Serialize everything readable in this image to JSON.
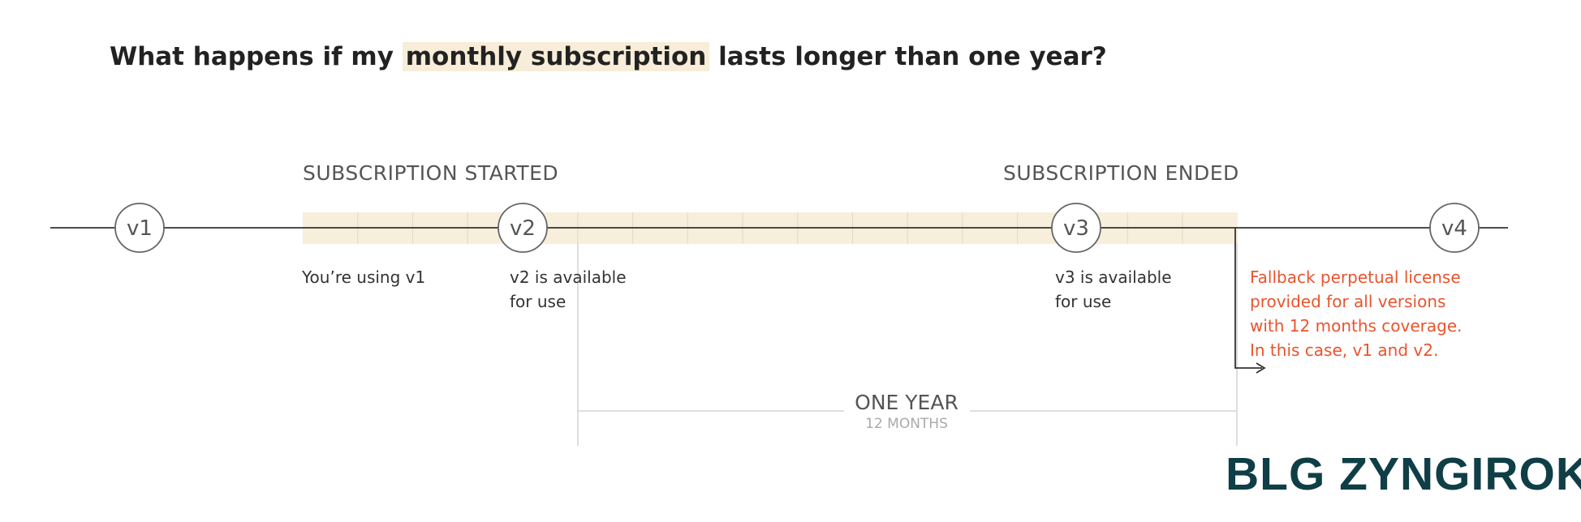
{
  "question": {
    "prefix": "What happens if my ",
    "highlight": "monthly subscription",
    "suffix": " lasts longer than one year?"
  },
  "timeline": {
    "subscription_started": "SUBSCRIPTION STARTED",
    "subscription_ended": "SUBSCRIPTION ENDED",
    "versions": [
      "v1",
      "v2",
      "v3",
      "v4"
    ],
    "notes": {
      "using_v1": "You’re using v1",
      "v2_line1": "v2 is available",
      "v2_line2": "for use",
      "v3_line1": "v3 is available",
      "v3_line2": "for use"
    },
    "fallback": {
      "line1": "Fallback perpetual license",
      "line2": "provided for all versions",
      "line3": "with 12 months coverage.",
      "line4": "In this case, v1 and v2."
    },
    "one_year": "ONE YEAR",
    "twelve_months": "12 MONTHS",
    "colors": {
      "band": "#f7efdc",
      "fallback_text": "#e8542e",
      "brand": "#0f3e46"
    }
  },
  "brand": "BLG ZYNGIROK"
}
